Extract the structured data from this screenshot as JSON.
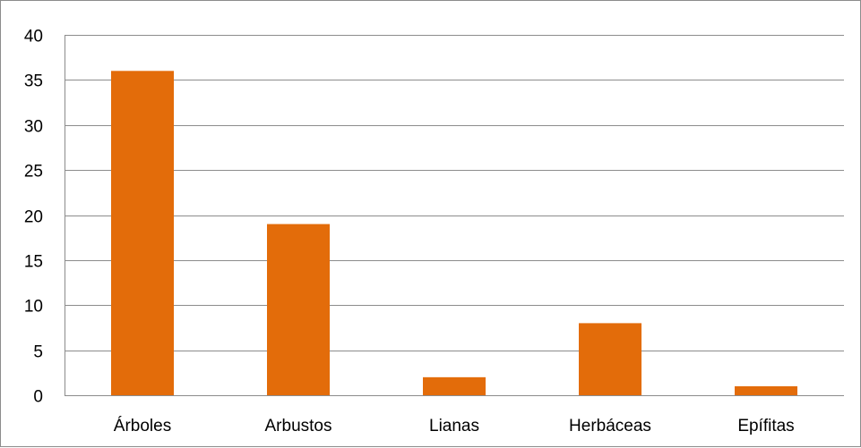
{
  "chart_data": {
    "type": "bar",
    "title": "",
    "xlabel": "",
    "ylabel": "",
    "categories": [
      "Árboles",
      "Arbustos",
      "Lianas",
      "Herbáceas",
      "Epífitas"
    ],
    "values": [
      36,
      19,
      2,
      8,
      1
    ],
    "ylim": [
      0,
      40
    ],
    "yticks": [
      0,
      5,
      10,
      15,
      20,
      25,
      30,
      35,
      40
    ],
    "grid": true,
    "legend": "none",
    "bar_color": "#E36C0A"
  }
}
